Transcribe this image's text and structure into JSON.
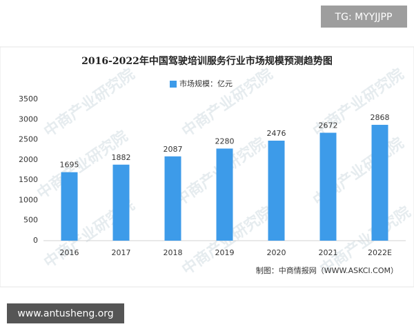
{
  "overlay_top": "TG: MYYJJPP",
  "overlay_bottom": "www.antusheng.org",
  "watermark": "中商产业研究院",
  "chart_data": {
    "type": "bar",
    "title": "2016-2022年中国驾驶培训服务行业市场规模预测趋势图",
    "source": "制图：中商情报网（WWW.ASKCI.COM）",
    "categories": [
      "2016",
      "2017",
      "2018",
      "2019",
      "2020",
      "2021",
      "2022E"
    ],
    "series": [
      {
        "name": "市场规模：亿元",
        "color": "#3d9be9",
        "values": [
          1695,
          1882,
          2087,
          2280,
          2476,
          2672,
          2868
        ]
      }
    ],
    "ylim": [
      0,
      3500
    ],
    "yticks": [
      0,
      500,
      1000,
      1500,
      2000,
      2500,
      3000,
      3500
    ],
    "grid": false,
    "legend": "top"
  }
}
